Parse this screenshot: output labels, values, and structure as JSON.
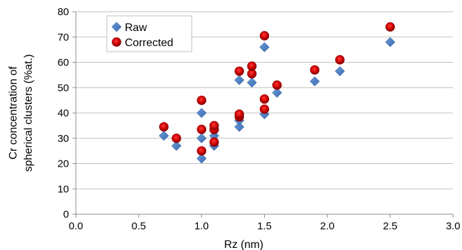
{
  "chart_data": {
    "type": "scatter",
    "title": "",
    "xlabel": "Rz (nm)",
    "ylabel_lines": [
      "Cr concentration of",
      "spherical clusters (%at.)"
    ],
    "xlim": [
      0.0,
      3.0
    ],
    "ylim": [
      0,
      80
    ],
    "x_ticks": [
      "0.0",
      "0.5",
      "1.0",
      "1.5",
      "2.0",
      "2.5",
      "3.0"
    ],
    "y_ticks": [
      "0",
      "10",
      "20",
      "30",
      "40",
      "50",
      "60",
      "70",
      "80"
    ],
    "grid": "horizontal",
    "legend_placement": "top-left",
    "series": [
      {
        "name": "Raw",
        "marker": "diamond",
        "color": "#4a7ebb",
        "points": [
          [
            0.7,
            31
          ],
          [
            0.8,
            27
          ],
          [
            1.0,
            22
          ],
          [
            1.0,
            30
          ],
          [
            1.0,
            40
          ],
          [
            1.1,
            27
          ],
          [
            1.1,
            31
          ],
          [
            1.1,
            33
          ],
          [
            1.3,
            34.5
          ],
          [
            1.3,
            37
          ],
          [
            1.3,
            53
          ],
          [
            1.4,
            52
          ],
          [
            1.5,
            39.5
          ],
          [
            1.5,
            66
          ],
          [
            1.6,
            48
          ],
          [
            1.9,
            52.5
          ],
          [
            2.1,
            56.5
          ],
          [
            2.5,
            68
          ]
        ]
      },
      {
        "name": "Corrected",
        "marker": "circle",
        "color": "#c00000",
        "points": [
          [
            0.7,
            34.5
          ],
          [
            0.8,
            30
          ],
          [
            1.0,
            25
          ],
          [
            1.0,
            33.5
          ],
          [
            1.0,
            45
          ],
          [
            1.1,
            28.5
          ],
          [
            1.1,
            33.5
          ],
          [
            1.1,
            35
          ],
          [
            1.3,
            38.5
          ],
          [
            1.3,
            39.5
          ],
          [
            1.3,
            56.5
          ],
          [
            1.4,
            55.5
          ],
          [
            1.4,
            58.5
          ],
          [
            1.5,
            41.5
          ],
          [
            1.5,
            45.5
          ],
          [
            1.5,
            70.5
          ],
          [
            1.6,
            51
          ],
          [
            1.9,
            57
          ],
          [
            2.1,
            61
          ],
          [
            2.5,
            74
          ]
        ]
      }
    ]
  }
}
